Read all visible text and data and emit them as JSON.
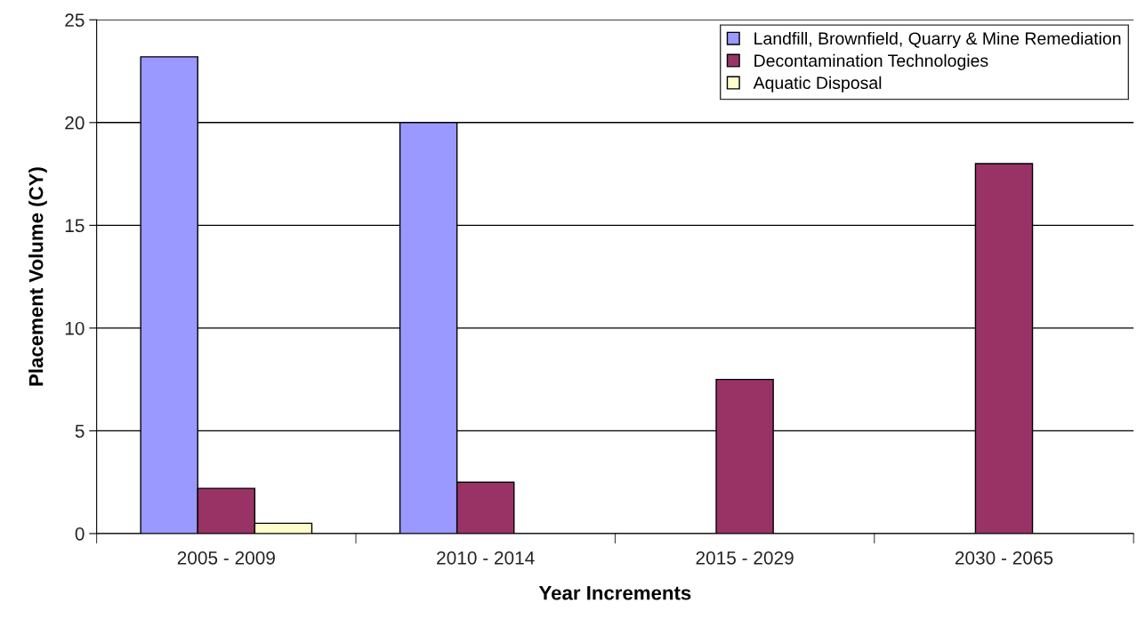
{
  "chart_data": {
    "type": "bar",
    "xlabel": "Year Increments",
    "ylabel": "Placement Volume (CY)",
    "categories": [
      "2005 - 2009",
      "2010 - 2014",
      "2015 - 2029",
      "2030 - 2065"
    ],
    "series": [
      {
        "name": "Landfill, Brownfield, Quarry & Mine Remediation",
        "color": "#9999ff",
        "values": [
          23.2,
          20.0,
          null,
          null
        ]
      },
      {
        "name": "Decontamination Technologies",
        "color": "#993366",
        "values": [
          2.2,
          2.5,
          7.5,
          18.0
        ]
      },
      {
        "name": "Aquatic Disposal",
        "color": "#ffffcc",
        "values": [
          0.5,
          null,
          null,
          null
        ]
      }
    ],
    "ylim": [
      0,
      25
    ],
    "yticks": [
      0,
      5,
      10,
      15,
      20,
      25
    ],
    "grid": "y",
    "legend": "top right"
  }
}
